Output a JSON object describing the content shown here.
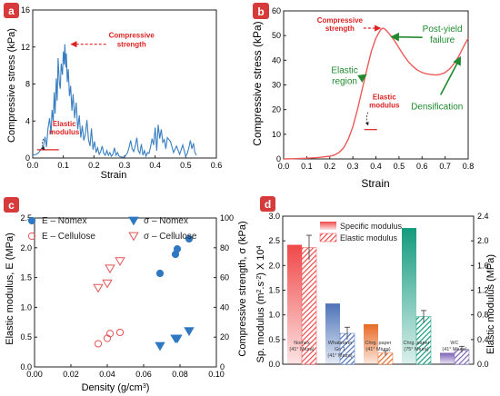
{
  "chart_data": [
    {
      "panel": "a",
      "type": "line",
      "xlabel": "Strain",
      "ylabel": "Compressive stress (kPa)",
      "xlim": [
        0.0,
        0.6
      ],
      "ylim": [
        0,
        16
      ],
      "xticks": [
        "0.0",
        "0.1",
        "0.2",
        "0.3",
        "0.4",
        "0.5",
        "0.6"
      ],
      "yticks": [
        "0",
        "4",
        "8",
        "12",
        "16"
      ],
      "annotations": [
        {
          "text": "Compressive strength",
          "x": 0.115,
          "y": 12.3
        },
        {
          "text": "Elastic modulus",
          "x": 0.02,
          "y": 0.5
        }
      ],
      "color": "#3a7fc1",
      "x": [
        0.0,
        0.012,
        0.02,
        0.028,
        0.035,
        0.04,
        0.045,
        0.05,
        0.055,
        0.06,
        0.063,
        0.067,
        0.07,
        0.073,
        0.077,
        0.08,
        0.083,
        0.087,
        0.09,
        0.093,
        0.097,
        0.1,
        0.103,
        0.105,
        0.108,
        0.11,
        0.113,
        0.116,
        0.12,
        0.124,
        0.128,
        0.132,
        0.137,
        0.142,
        0.147,
        0.152,
        0.157,
        0.162,
        0.167,
        0.172,
        0.177,
        0.182,
        0.187,
        0.192,
        0.197,
        0.202,
        0.207,
        0.212,
        0.217,
        0.222,
        0.227,
        0.232,
        0.237,
        0.242,
        0.247,
        0.252,
        0.257,
        0.262,
        0.267,
        0.272,
        0.277,
        0.282,
        0.29,
        0.3,
        0.31,
        0.315,
        0.32,
        0.325,
        0.33,
        0.335,
        0.34,
        0.345,
        0.35,
        0.355,
        0.36,
        0.365,
        0.37,
        0.375,
        0.38,
        0.385,
        0.39,
        0.395,
        0.4,
        0.405,
        0.41,
        0.415,
        0.42,
        0.425,
        0.43,
        0.435,
        0.44,
        0.45,
        0.46,
        0.47,
        0.48,
        0.49,
        0.5,
        0.505,
        0.51,
        0.515,
        0.52,
        0.525,
        0.53,
        0.535
      ],
      "y": [
        0.3,
        0.4,
        0.6,
        1.0,
        1.3,
        2.3,
        1.2,
        3.2,
        4.3,
        2.6,
        5.2,
        4.0,
        7.1,
        4.8,
        8.6,
        6.2,
        10.8,
        8.1,
        7.5,
        10.2,
        9.0,
        11.5,
        10.1,
        12.3,
        9.8,
        11.3,
        8.2,
        9.6,
        6.7,
        7.8,
        5.1,
        6.9,
        4.3,
        6.0,
        3.1,
        4.6,
        2.2,
        3.5,
        1.9,
        2.6,
        4.1,
        2.0,
        1.3,
        3.2,
        0.9,
        1.8,
        0.6,
        1.1,
        0.4,
        0.7,
        1.3,
        0.5,
        0.3,
        0.8,
        0.3,
        0.6,
        0.2,
        0.4,
        1.1,
        0.3,
        0.6,
        0.2,
        0.1,
        0.1,
        0.6,
        1.2,
        1.9,
        1.0,
        0.7,
        1.3,
        2.2,
        0.8,
        0.5,
        1.5,
        0.3,
        0.8,
        0.2,
        0.6,
        0.5,
        1.2,
        2.1,
        1.4,
        3.3,
        0.8,
        3.6,
        2.1,
        3.1,
        1.7,
        2.0,
        1.0,
        2.2,
        1.8,
        0.6,
        1.3,
        0.4,
        1.4,
        0.2,
        0.5,
        1.1,
        1.9,
        1.0,
        1.6,
        0.6,
        0.3
      ]
    },
    {
      "panel": "b",
      "type": "line",
      "xlabel": "Strain",
      "ylabel": "Compressive stress (kPa)",
      "xlim": [
        0.0,
        0.8
      ],
      "ylim": [
        0,
        60
      ],
      "xticks": [
        "0.0",
        "0.1",
        "0.2",
        "0.3",
        "0.4",
        "0.5",
        "0.6",
        "0.7",
        "0.8"
      ],
      "yticks": [
        "0",
        "10",
        "20",
        "30",
        "40",
        "50",
        "60"
      ],
      "annotations": [
        {
          "text": "Compressive strength",
          "x": 0.425,
          "y": 53
        },
        {
          "text": "Post-yield failure",
          "x": 0.57,
          "y": 50
        },
        {
          "text": "Elastic region",
          "x": 0.28,
          "y": 34
        },
        {
          "text": "Elastic modulus",
          "x": 0.35,
          "y": 13
        },
        {
          "text": "Densification",
          "x": 0.72,
          "y": 38
        }
      ],
      "color": "#ee5a5a",
      "x": [
        0.0,
        0.05,
        0.1,
        0.15,
        0.2,
        0.22,
        0.24,
        0.26,
        0.28,
        0.3,
        0.32,
        0.34,
        0.36,
        0.38,
        0.4,
        0.42,
        0.43,
        0.44,
        0.46,
        0.48,
        0.5,
        0.52,
        0.54,
        0.56,
        0.58,
        0.6,
        0.62,
        0.64,
        0.66,
        0.68,
        0.7,
        0.72,
        0.74,
        0.76,
        0.78,
        0.8
      ],
      "y": [
        0.0,
        0.1,
        0.3,
        0.6,
        1.1,
        1.6,
        2.6,
        4.5,
        8.0,
        13.0,
        20.0,
        28.0,
        36.0,
        43.5,
        49.0,
        52.3,
        53.0,
        52.6,
        50.5,
        48.0,
        45.0,
        42.0,
        39.5,
        37.5,
        36.0,
        35.0,
        34.5,
        34.2,
        34.0,
        34.3,
        35.0,
        36.5,
        38.8,
        41.8,
        45.5,
        49.0
      ]
    },
    {
      "panel": "c",
      "type": "scatter",
      "xlabel": "Density (g/cm3)",
      "ylabel": "Elastic modulus, E (MPa)",
      "ylabel_right": "Compressive strength, σ (kPa)",
      "xlim": [
        0.0,
        0.1
      ],
      "ylim": [
        0,
        2.5
      ],
      "ylim_right": [
        0,
        100
      ],
      "xticks": [
        "0.00",
        "0.02",
        "0.04",
        "0.06",
        "0.08",
        "0.10"
      ],
      "yticks": [
        "0.0",
        "0.5",
        "1.0",
        "1.5",
        "2.0",
        "2.5"
      ],
      "yticks_right": [
        "0",
        "20",
        "40",
        "60",
        "80",
        "100"
      ],
      "legend_position": "top",
      "series": [
        {
          "name": "E – Nomex",
          "axis": "left",
          "marker": "circle",
          "filled": true,
          "color": "#2f78c2",
          "x": [
            0.069,
            0.0775,
            0.0785,
            0.085
          ],
          "y": [
            1.57,
            1.89,
            1.98,
            2.15
          ]
        },
        {
          "name": "E – Cellulose",
          "axis": "left",
          "marker": "circle",
          "filled": false,
          "color": "#e15555",
          "x": [
            0.035,
            0.04,
            0.0415,
            0.047
          ],
          "y": [
            0.39,
            0.48,
            0.56,
            0.58
          ]
        },
        {
          "name": "σ – Nomex",
          "axis": "right",
          "marker": "triangle-down",
          "filled": true,
          "color": "#2f78c2",
          "x": [
            0.069,
            0.0775,
            0.0785,
            0.085
          ],
          "y": [
            14,
            19,
            19,
            24
          ]
        },
        {
          "name": "σ – Cellulose",
          "axis": "right",
          "marker": "triangle-down",
          "filled": false,
          "color": "#e15555",
          "x": [
            0.035,
            0.04,
            0.0415,
            0.047
          ],
          "y": [
            53,
            56,
            66,
            71
          ]
        }
      ]
    },
    {
      "panel": "d",
      "type": "bar",
      "ylabel": "Sp. modulus (m2.s-2) X 104",
      "ylabel_right": "Elastic modulus (MPa)",
      "ylim": [
        0,
        3.0
      ],
      "ylim_right": [
        0,
        2.4
      ],
      "yticks": [
        "0.0",
        "0.5",
        "1.0",
        "1.5",
        "2.0",
        "2.5",
        "3.0"
      ],
      "yticks_right": [
        "0.0",
        "0.4",
        "0.8",
        "1.2",
        "1.6",
        "2.0",
        "2.4"
      ],
      "legend_position": "top-left",
      "categories": [
        [
          "Nomex",
          "(41° Miura)"
        ],
        [
          "Whatmann",
          "Gr. 1",
          "(41° Miura)"
        ],
        [
          "Chrg. paper",
          "(41° Miura)"
        ],
        [
          "Chrg. paper",
          "(75° Miura)"
        ],
        [
          "WC",
          "(41° Miura)"
        ]
      ],
      "colors": [
        "#f04848",
        "#4c72b8",
        "#e76a25",
        "#139a7e",
        "#7d62b5"
      ],
      "series": [
        {
          "name": "Specific modulus",
          "axis": "left",
          "values": [
            2.42,
            1.23,
            0.81,
            2.76,
            0.23
          ]
        },
        {
          "name": "Elastic modulus",
          "axis": "right",
          "values": [
            1.89,
            0.5,
            0.18,
            0.77,
            0.24
          ],
          "errors": [
            0.2,
            0.1,
            0.04,
            0.1,
            0.05
          ]
        }
      ]
    }
  ],
  "panels": {
    "a": {
      "letter": "a"
    },
    "b": {
      "letter": "b"
    },
    "c": {
      "letter": "c"
    },
    "d": {
      "letter": "d"
    }
  },
  "colors": {
    "panel_label_bg": "#d63a3a",
    "annotation_red": "#dd2222",
    "annotation_green": "#1f8a2e"
  }
}
